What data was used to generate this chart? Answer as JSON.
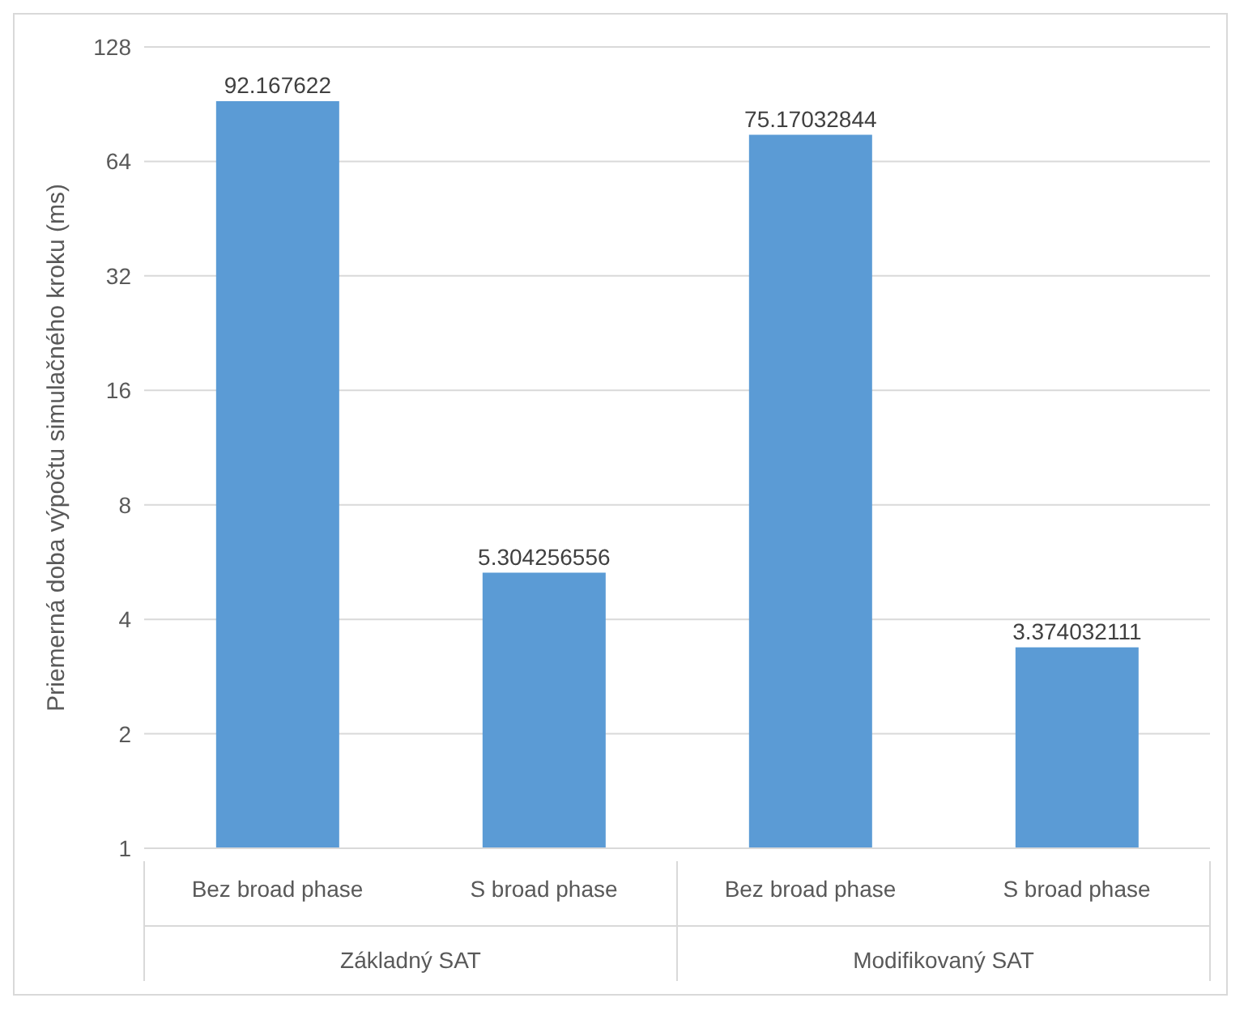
{
  "chart_data": {
    "type": "bar",
    "ylabel": "Priemerná doba výpočtu simulačného kroku (ms)",
    "categories": [
      "Bez broad phase",
      "S broad phase",
      "Bez broad phase",
      "S broad phase"
    ],
    "values": [
      92.167622,
      5.304256556,
      75.17032844,
      3.374032111
    ],
    "color": "#5b9bd5",
    "log": "y",
    "ylim": [
      1,
      128
    ],
    "yticks": [
      1,
      2,
      4,
      8,
      16,
      32,
      64,
      128
    ],
    "grid": "y",
    "data_labels": true,
    "annotations": [
      "Základný SAT",
      "Modifikovaný SAT"
    ]
  }
}
